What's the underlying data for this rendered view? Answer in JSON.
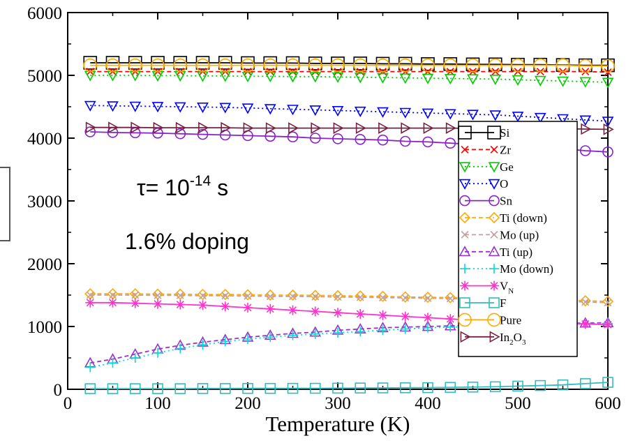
{
  "chart_data": {
    "type": "line",
    "title": "",
    "xlabel": "Temperature (K)",
    "ylabel": "",
    "xlim": [
      0,
      600
    ],
    "ylim": [
      0,
      6000
    ],
    "xticks": [
      "0",
      "100",
      "200",
      "300",
      "400",
      "500",
      "600"
    ],
    "yticks": [
      "0",
      "1000",
      "2000",
      "3000",
      "4000",
      "5000",
      "6000"
    ],
    "grid": false,
    "legend_position": "right",
    "annotations": {
      "tau_prefix": "τ= 10",
      "tau_exp": "-14",
      "tau_unit": " s",
      "doping": "1.6% doping"
    },
    "x": [
      25,
      50,
      75,
      100,
      125,
      150,
      175,
      200,
      225,
      250,
      275,
      300,
      325,
      350,
      375,
      400,
      425,
      450,
      475,
      500,
      525,
      550,
      575,
      600
    ],
    "series": [
      {
        "name": "Si",
        "color": "#000000",
        "marker": "square",
        "dash": "none",
        "values": [
          5200,
          5200,
          5200,
          5200,
          5200,
          5200,
          5200,
          5195,
          5195,
          5195,
          5190,
          5190,
          5190,
          5185,
          5185,
          5180,
          5180,
          5175,
          5175,
          5170,
          5170,
          5165,
          5160,
          5160
        ]
      },
      {
        "name": "Zr",
        "color": "#ff0000",
        "marker": "x",
        "dash": "6,4",
        "values": [
          5060,
          5060,
          5060,
          5060,
          5060,
          5060,
          5060,
          5060,
          5060,
          5060,
          5060,
          5060,
          5060,
          5060,
          5060,
          5060,
          5060,
          5060,
          5060,
          5060,
          5060,
          5060,
          5060,
          5050
        ]
      },
      {
        "name": "Ge",
        "color": "#00cc00",
        "marker": "tri-down",
        "dash": "2,4",
        "values": [
          5000,
          5000,
          5000,
          4995,
          4995,
          4990,
          4990,
          4985,
          4985,
          4980,
          4980,
          4975,
          4970,
          4965,
          4960,
          4955,
          4950,
          4945,
          4940,
          4930,
          4920,
          4910,
          4900,
          4890
        ]
      },
      {
        "name": "O",
        "color": "#0000ff",
        "marker": "tri-down",
        "dash": "2,4",
        "values": [
          4520,
          4515,
          4510,
          4505,
          4500,
          4495,
          4490,
          4480,
          4470,
          4460,
          4450,
          4440,
          4430,
          4420,
          4410,
          4400,
          4390,
          4380,
          4370,
          4350,
          4330,
          4310,
          4290,
          4270
        ]
      },
      {
        "name": "Sn",
        "color": "#8822cc",
        "marker": "circle",
        "dash": "none",
        "values": [
          4100,
          4090,
          4085,
          4080,
          4070,
          4060,
          4050,
          4040,
          4030,
          4020,
          4000,
          3990,
          3980,
          3970,
          3950,
          3940,
          3920,
          3900,
          3880,
          3870,
          3850,
          3830,
          3800,
          3780
        ]
      },
      {
        "name": "Ti (down)",
        "color": "#ffaa00",
        "marker": "diamond",
        "dash": "6,4",
        "values": [
          1520,
          1520,
          1520,
          1515,
          1515,
          1510,
          1510,
          1505,
          1500,
          1500,
          1495,
          1490,
          1485,
          1480,
          1470,
          1465,
          1460,
          1455,
          1450,
          1440,
          1430,
          1420,
          1410,
          1400
        ]
      },
      {
        "name": "Mo (up)",
        "color": "#c0a0a0",
        "marker": "x",
        "dash": "6,4",
        "values": [
          1500,
          1500,
          1500,
          1495,
          1495,
          1490,
          1490,
          1485,
          1480,
          1480,
          1475,
          1470,
          1465,
          1460,
          1455,
          1450,
          1445,
          1440,
          1430,
          1420,
          1410,
          1400,
          1390,
          1380
        ]
      },
      {
        "name": "Ti (up)",
        "color": "#9933cc",
        "marker": "tri-up",
        "dash": "6,4",
        "values": [
          420,
          480,
          560,
          640,
          700,
          750,
          790,
          830,
          860,
          890,
          910,
          940,
          960,
          980,
          990,
          1000,
          1010,
          1020,
          1030,
          1040,
          1045,
          1050,
          1055,
          1060
        ]
      },
      {
        "name": "Mo (down)",
        "color": "#00dddd",
        "marker": "plus",
        "dash": "2,4",
        "values": [
          350,
          420,
          500,
          580,
          650,
          710,
          760,
          800,
          830,
          860,
          880,
          900,
          920,
          940,
          960,
          980,
          990,
          1000,
          1010,
          1020,
          1030,
          1040,
          1045,
          1050
        ]
      },
      {
        "name": "V_N",
        "label": "V",
        "sub": "N",
        "color": "#ff33cc",
        "marker": "star",
        "dash": "none",
        "values": [
          1380,
          1380,
          1370,
          1360,
          1350,
          1340,
          1320,
          1300,
          1280,
          1260,
          1240,
          1220,
          1200,
          1180,
          1160,
          1140,
          1120,
          1100,
          1090,
          1080,
          1060,
          1050,
          1040,
          1030
        ]
      },
      {
        "name": "F",
        "color": "#33bbbb",
        "marker": "square",
        "dash": "none",
        "values": [
          10,
          10,
          10,
          10,
          10,
          12,
          12,
          14,
          14,
          15,
          16,
          18,
          20,
          22,
          24,
          26,
          30,
          35,
          40,
          50,
          60,
          70,
          90,
          110
        ]
      },
      {
        "name": "Pure",
        "color": "#ffaa00",
        "marker": "circle",
        "dash": "none",
        "values": [
          5160,
          5160,
          5160,
          5160,
          5160,
          5160,
          5160,
          5160,
          5160,
          5160,
          5160,
          5160,
          5160,
          5160,
          5160,
          5160,
          5160,
          5160,
          5160,
          5160,
          5160,
          5160,
          5150,
          5150
        ]
      },
      {
        "name": "In2O3",
        "label": "In",
        "sub": "2",
        "label2": "O",
        "sub2": "3",
        "color": "#772244",
        "marker": "tri-right",
        "dash": "none",
        "values": [
          4170,
          4170,
          4170,
          4165,
          4165,
          4165,
          4165,
          4160,
          4160,
          4160,
          4160,
          4160,
          4160,
          4160,
          4160,
          4160,
          4160,
          4155,
          4155,
          4150,
          4150,
          4150,
          4145,
          4140
        ]
      }
    ]
  }
}
